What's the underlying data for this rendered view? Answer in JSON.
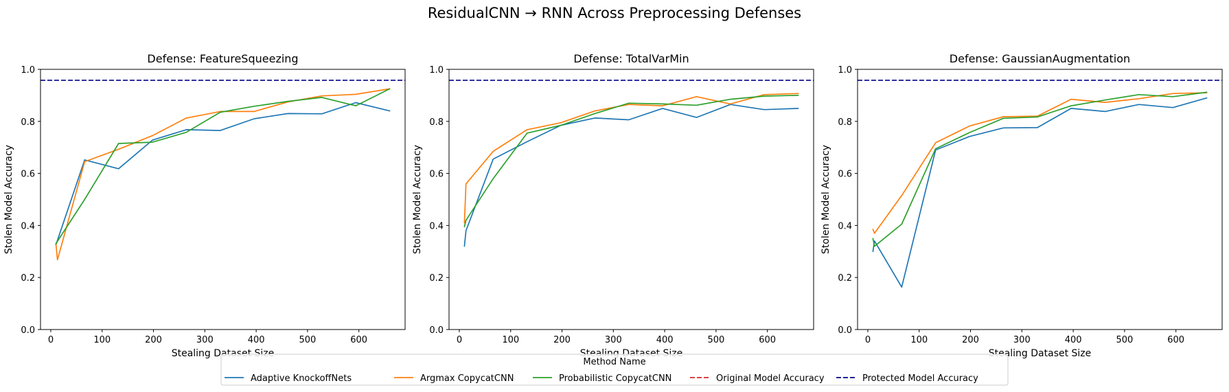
{
  "chart_data": {
    "title": "ResidualCNN → RNN Across Preprocessing Defenses",
    "type": "line",
    "legend": {
      "title": "Method Name",
      "placement": "bottom-center",
      "entries": [
        {
          "label": "Adaptive KnockoffNets",
          "color": "#1f77b4",
          "style": "solid"
        },
        {
          "label": "Argmax CopycatCNN",
          "color": "#ff7f0e",
          "style": "solid"
        },
        {
          "label": "Probabilistic CopycatCNN",
          "color": "#2ca02c",
          "style": "solid"
        },
        {
          "label": "Original Model Accuracy",
          "color": "#d62728",
          "style": "dashed"
        },
        {
          "label": "Protected Model Accuracy",
          "color": "#00008b",
          "style": "dashed"
        }
      ]
    },
    "panels": [
      {
        "title": "Defense: FeatureSqueezing",
        "xlabel": "Stealing Dataset Size",
        "ylabel": "Stolen Model Accuracy",
        "xlim": [
          -20,
          690
        ],
        "ylim": [
          0,
          1.0
        ],
        "xticks": [
          0,
          100,
          200,
          300,
          400,
          500,
          600
        ],
        "yticks": [
          0.0,
          0.2,
          0.4,
          0.6,
          0.8,
          1.0
        ],
        "xtick_labels": [
          "0",
          "100",
          "200",
          "300",
          "400",
          "500",
          "600"
        ],
        "ytick_labels": [
          "0.0",
          "0.2",
          "0.4",
          "0.6",
          "0.8",
          "1.0"
        ],
        "hlines": [
          {
            "name": "Protected Model Accuracy",
            "y": 0.958,
            "color": "#00008b"
          }
        ],
        "series": [
          {
            "name": "Adaptive KnockoffNets",
            "color": "#1f77b4",
            "x": [
              10,
              66,
              132,
              198,
              264,
              330,
              396,
              462,
              528,
              594,
              660
            ],
            "y": [
              0.325,
              0.652,
              0.618,
              0.728,
              0.768,
              0.765,
              0.81,
              0.83,
              0.829,
              0.872,
              0.84
            ]
          },
          {
            "name": "Argmax CopycatCNN",
            "color": "#ff7f0e",
            "x": [
              10,
              13,
              66,
              132,
              198,
              264,
              330,
              396,
              462,
              528,
              594,
              660
            ],
            "y": [
              0.33,
              0.268,
              0.645,
              0.693,
              0.745,
              0.813,
              0.838,
              0.838,
              0.875,
              0.898,
              0.904,
              0.925
            ]
          },
          {
            "name": "Probabilistic CopycatCNN",
            "color": "#2ca02c",
            "x": [
              10,
              66,
              132,
              198,
              264,
              330,
              396,
              462,
              528,
              594,
              660
            ],
            "y": [
              0.33,
              0.5,
              0.715,
              0.72,
              0.758,
              0.835,
              0.858,
              0.877,
              0.892,
              0.86,
              0.925
            ]
          }
        ]
      },
      {
        "title": "Defense: TotalVarMin",
        "xlabel": "Stealing Dataset Size",
        "ylabel": "Stolen Model Accuracy",
        "xlim": [
          -20,
          690
        ],
        "ylim": [
          0,
          1.0
        ],
        "xticks": [
          0,
          100,
          200,
          300,
          400,
          500,
          600
        ],
        "yticks": [
          0.0,
          0.2,
          0.4,
          0.6,
          0.8,
          1.0
        ],
        "xtick_labels": [
          "0",
          "100",
          "200",
          "300",
          "400",
          "500",
          "600"
        ],
        "ytick_labels": [
          "0.0",
          "0.2",
          "0.4",
          "0.6",
          "0.8",
          "1.0"
        ],
        "hlines": [
          {
            "name": "Protected Model Accuracy",
            "y": 0.958,
            "color": "#00008b"
          }
        ],
        "series": [
          {
            "name": "Adaptive KnockoffNets",
            "color": "#1f77b4",
            "x": [
              10,
              13,
              66,
              132,
              198,
              264,
              330,
              396,
              462,
              528,
              594,
              660
            ],
            "y": [
              0.32,
              0.38,
              0.655,
              0.722,
              0.785,
              0.813,
              0.806,
              0.85,
              0.815,
              0.865,
              0.845,
              0.85
            ]
          },
          {
            "name": "Argmax CopycatCNN",
            "color": "#ff7f0e",
            "x": [
              10,
              13,
              66,
              132,
              198,
              264,
              330,
              396,
              462,
              528,
              594,
              660
            ],
            "y": [
              0.41,
              0.56,
              0.685,
              0.768,
              0.795,
              0.84,
              0.865,
              0.86,
              0.895,
              0.867,
              0.903,
              0.907
            ]
          },
          {
            "name": "Probabilistic CopycatCNN",
            "color": "#2ca02c",
            "x": [
              10,
              13,
              66,
              132,
              198,
              264,
              330,
              396,
              462,
              528,
              594,
              660
            ],
            "y": [
              0.395,
              0.42,
              0.58,
              0.755,
              0.785,
              0.83,
              0.87,
              0.867,
              0.862,
              0.885,
              0.897,
              0.9
            ]
          }
        ]
      },
      {
        "title": "Defense: GaussianAugmentation",
        "xlabel": "Stealing Dataset Size",
        "ylabel": "Stolen Model Accuracy",
        "xlim": [
          -20,
          690
        ],
        "ylim": [
          0,
          1.0
        ],
        "xticks": [
          0,
          100,
          200,
          300,
          400,
          500,
          600
        ],
        "yticks": [
          0.0,
          0.2,
          0.4,
          0.6,
          0.8,
          1.0
        ],
        "xtick_labels": [
          "0",
          "100",
          "200",
          "300",
          "400",
          "500",
          "600"
        ],
        "ytick_labels": [
          "0.0",
          "0.2",
          "0.4",
          "0.6",
          "0.8",
          "1.0"
        ],
        "hlines": [
          {
            "name": "Protected Model Accuracy",
            "y": 0.958,
            "color": "#00008b"
          }
        ],
        "series": [
          {
            "name": "Adaptive KnockoffNets",
            "color": "#1f77b4",
            "x": [
              10,
              13,
              66,
              132,
              198,
              264,
              330,
              396,
              462,
              528,
              594,
              660
            ],
            "y": [
              0.3,
              0.34,
              0.163,
              0.69,
              0.742,
              0.775,
              0.776,
              0.85,
              0.838,
              0.865,
              0.853,
              0.89
            ]
          },
          {
            "name": "Argmax CopycatCNN",
            "color": "#ff7f0e",
            "x": [
              10,
              13,
              66,
              132,
              198,
              264,
              330,
              396,
              462,
              528,
              594,
              660
            ],
            "y": [
              0.385,
              0.37,
              0.515,
              0.718,
              0.782,
              0.818,
              0.82,
              0.885,
              0.873,
              0.887,
              0.907,
              0.91
            ]
          },
          {
            "name": "Probabilistic CopycatCNN",
            "color": "#2ca02c",
            "x": [
              10,
              13,
              66,
              132,
              198,
              264,
              330,
              396,
              462,
              528,
              594,
              660
            ],
            "y": [
              0.35,
              0.32,
              0.405,
              0.695,
              0.757,
              0.812,
              0.817,
              0.86,
              0.882,
              0.903,
              0.895,
              0.912
            ]
          }
        ]
      }
    ]
  }
}
